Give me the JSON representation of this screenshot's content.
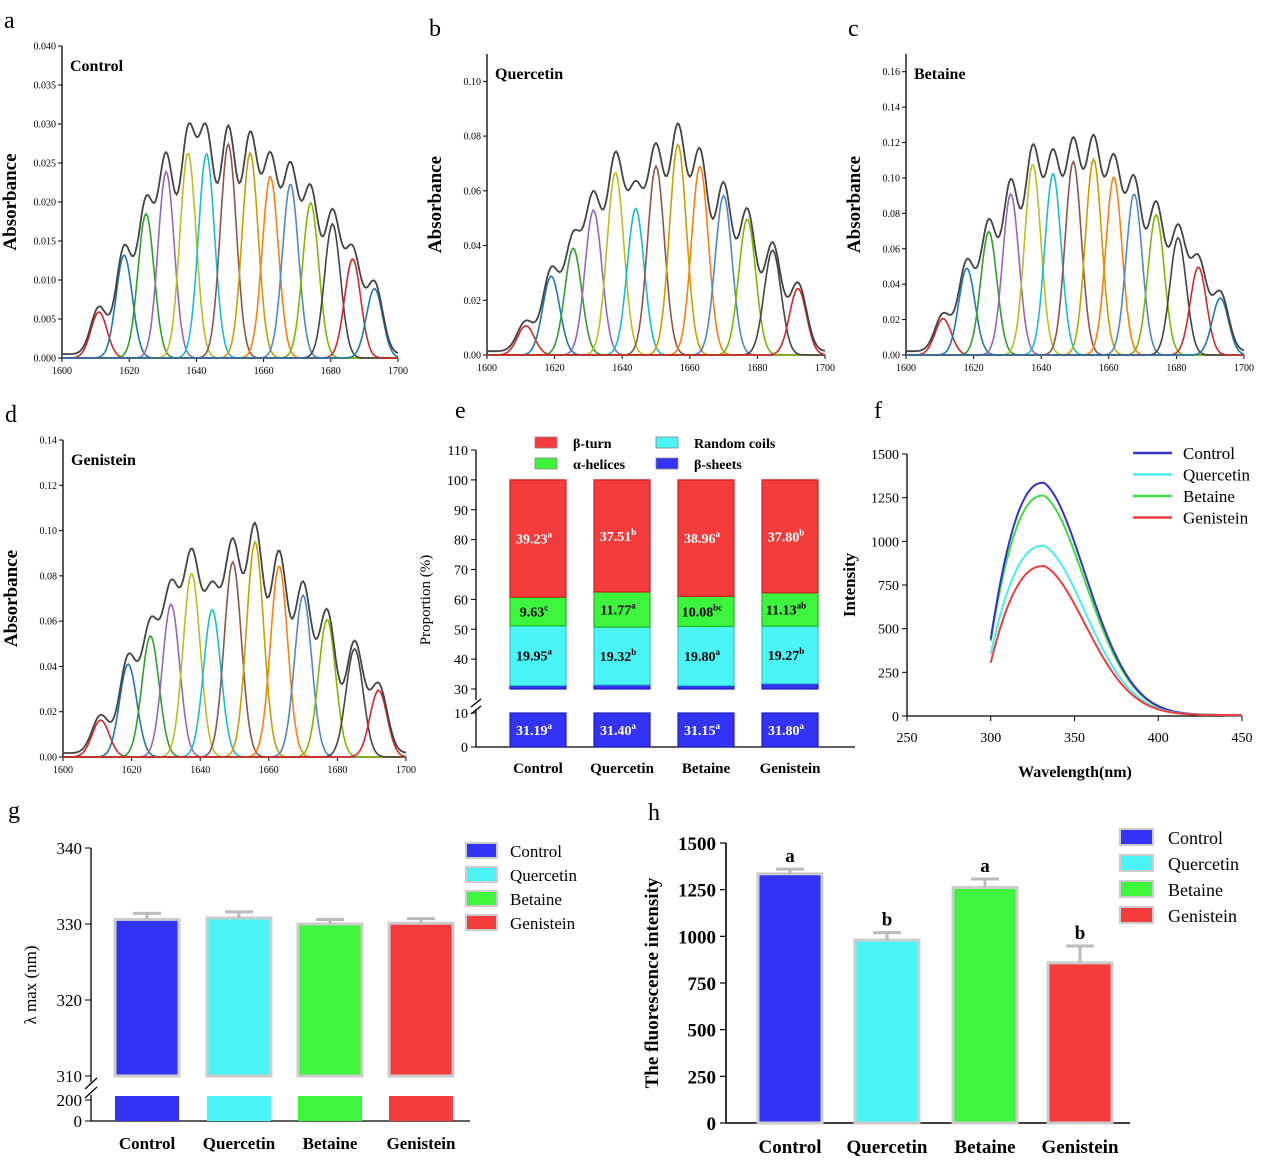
{
  "figure": {
    "panels": [
      {
        "letter": "a",
        "label": "Control"
      },
      {
        "letter": "b",
        "label": "Quercetin"
      },
      {
        "letter": "c",
        "label": "Betaine"
      },
      {
        "letter": "d",
        "label": "Genistein"
      },
      {
        "letter": "e"
      },
      {
        "letter": "f"
      },
      {
        "letter": "g"
      },
      {
        "letter": "h"
      }
    ]
  },
  "chart_data": [
    {
      "id": "a",
      "type": "line",
      "title": "Control",
      "xlabel": "",
      "ylabel": "Absorbance",
      "xlim": [
        1600,
        1700
      ],
      "ylim": [
        0,
        0.04
      ],
      "x_ticks": [
        1600,
        1620,
        1640,
        1660,
        1680,
        1700
      ],
      "y_ticks": [
        "0.000",
        "0.005",
        "0.010",
        "0.015",
        "0.020",
        "0.025",
        "0.030",
        "0.035",
        "0.040"
      ],
      "peak_centers": [
        1611,
        1618.5,
        1625,
        1631,
        1637.5,
        1643,
        1649.5,
        1656,
        1662,
        1668,
        1674,
        1680.5,
        1686.5,
        1693
      ],
      "peak_heights": [
        0.0059,
        0.0132,
        0.0185,
        0.0239,
        0.0263,
        0.0262,
        0.0274,
        0.0263,
        0.0233,
        0.0223,
        0.0199,
        0.0172,
        0.0127,
        0.0089
      ],
      "peak_sigma": 2.4
    },
    {
      "id": "b",
      "type": "line",
      "title": "Quercetin",
      "xlabel": "",
      "ylabel": "Absorbance",
      "xlim": [
        1600,
        1700
      ],
      "ylim": [
        0,
        0.11
      ],
      "x_ticks": [
        1600,
        1620,
        1640,
        1660,
        1680,
        1700
      ],
      "y_ticks": [
        "0.00",
        "0.02",
        "0.04",
        "0.06",
        "0.08",
        "0.10"
      ],
      "peak_centers": [
        1611.5,
        1619,
        1625.5,
        1631.5,
        1638,
        1644,
        1650,
        1656.5,
        1663,
        1670,
        1677,
        1684.5,
        1692
      ],
      "peak_heights": [
        0.0107,
        0.0288,
        0.039,
        0.053,
        0.0667,
        0.0535,
        0.069,
        0.077,
        0.069,
        0.0583,
        0.0497,
        0.0383,
        0.0243
      ],
      "peak_sigma": 2.5
    },
    {
      "id": "c",
      "type": "line",
      "title": "Betaine",
      "xlabel": "",
      "ylabel": "Absorbance",
      "xlim": [
        1600,
        1700
      ],
      "ylim": [
        0,
        0.17
      ],
      "x_ticks": [
        1600,
        1620,
        1640,
        1660,
        1680,
        1700
      ],
      "y_ticks": [
        "0.00",
        "0.02",
        "0.04",
        "0.06",
        "0.08",
        "0.10",
        "0.12",
        "0.14",
        "0.16"
      ],
      "peak_centers": [
        1611,
        1618,
        1624.5,
        1631,
        1637.5,
        1643.5,
        1649.5,
        1655.5,
        1661.5,
        1667.5,
        1674,
        1680.5,
        1686.5,
        1693
      ],
      "peak_heights": [
        0.0205,
        0.049,
        0.0697,
        0.091,
        0.1077,
        0.1025,
        0.1092,
        0.1107,
        0.1005,
        0.091,
        0.0792,
        0.0662,
        0.0497,
        0.0322
      ],
      "peak_sigma": 2.4
    },
    {
      "id": "d",
      "type": "line",
      "title": "Genistein",
      "xlabel": "",
      "ylabel": "Absorbance",
      "xlim": [
        1600,
        1700
      ],
      "ylim": [
        0,
        0.14
      ],
      "x_ticks": [
        1600,
        1620,
        1640,
        1660,
        1680,
        1700
      ],
      "y_ticks": [
        "0.00",
        "0.02",
        "0.04",
        "0.06",
        "0.08",
        "0.10",
        "0.12",
        "0.14"
      ],
      "peak_centers": [
        1611,
        1619,
        1625.5,
        1631.5,
        1637.5,
        1643.5,
        1649.5,
        1656,
        1663,
        1670,
        1677,
        1685,
        1692
      ],
      "peak_heights": [
        0.0163,
        0.041,
        0.0535,
        0.0675,
        0.0812,
        0.065,
        0.0862,
        0.095,
        0.0845,
        0.0715,
        0.0607,
        0.0478,
        0.0295
      ],
      "peak_sigma": 2.5
    },
    {
      "id": "e",
      "type": "bar",
      "stacked": true,
      "categories": [
        "Control",
        "Quercetin",
        "Betaine",
        "Genistein"
      ],
      "xlabel": "",
      "ylabel": "Proportion (%)",
      "ylim": [
        0,
        110
      ],
      "axis_break": [
        10,
        30
      ],
      "y_ticks": [
        "0",
        "10",
        "30",
        "40",
        "50",
        "60",
        "70",
        "80",
        "90",
        "100",
        "110"
      ],
      "series": [
        {
          "name": "β-sheets",
          "color": "#3333f5",
          "values": [
            31.19,
            31.4,
            31.15,
            31.8
          ],
          "labels": [
            "31.19",
            "31.40",
            "31.15",
            "31.80"
          ],
          "sup": [
            "a",
            "a",
            "a",
            "a"
          ]
        },
        {
          "name": "Random coils",
          "color": "#49f5f5",
          "values": [
            19.95,
            19.32,
            19.8,
            19.27
          ],
          "labels": [
            "19.95",
            "19.32",
            "19.80",
            "19.27"
          ],
          "sup": [
            "a",
            "b",
            "a",
            "b"
          ]
        },
        {
          "name": "α-helices",
          "color": "#3df53d",
          "values": [
            9.63,
            11.77,
            10.08,
            11.13
          ],
          "labels": [
            "9.63",
            "11.77",
            "10.08",
            "11.13"
          ],
          "sup": [
            "c",
            "a",
            "bc",
            "ab"
          ]
        },
        {
          "name": "β-turn",
          "color": "#f53c3c",
          "values": [
            39.23,
            37.51,
            38.96,
            37.8
          ],
          "labels": [
            "39.23",
            "37.51",
            "38.96",
            "37.80"
          ],
          "sup": [
            "a",
            "b",
            "a",
            "b"
          ]
        }
      ]
    },
    {
      "id": "f",
      "type": "line",
      "xlabel": "Wavelength(nm)",
      "ylabel": "Intensity",
      "xlim": [
        250,
        450
      ],
      "ylim": [
        0,
        1500
      ],
      "x_ticks": [
        "250",
        "300",
        "350",
        "400",
        "450"
      ],
      "y_ticks": [
        "0",
        "250",
        "500",
        "750",
        "1000",
        "1250",
        "1500"
      ],
      "series": [
        {
          "name": "Control",
          "color": "#3333cc",
          "x0": 300,
          "peak_x": 331,
          "peak_y": 1335,
          "start_y": 440
        },
        {
          "name": "Quercetin",
          "color": "#49eeee",
          "x0": 300,
          "peak_x": 331,
          "peak_y": 975,
          "start_y": 355
        },
        {
          "name": "Betaine",
          "color": "#3dde3d",
          "x0": 300,
          "peak_x": 331,
          "peak_y": 1262,
          "start_y": 430
        },
        {
          "name": "Genistein",
          "color": "#ee3c3c",
          "x0": 300,
          "peak_x": 331,
          "peak_y": 858,
          "start_y": 305
        }
      ]
    },
    {
      "id": "g",
      "type": "bar",
      "categories": [
        "Control",
        "Quercetin",
        "Betaine",
        "Genistein"
      ],
      "xlabel": "",
      "ylabel": "λ max (nm)",
      "ylim": [
        0,
        340
      ],
      "axis_break": [
        200,
        310
      ],
      "y_ticks": [
        "0",
        "200",
        "310",
        "320",
        "330",
        "340"
      ],
      "series": [
        {
          "name": "λ max",
          "values": [
            330.6,
            330.8,
            330.0,
            330.1
          ],
          "errors": [
            0.8,
            0.8,
            0.6,
            0.6
          ],
          "colors": [
            "#3333f5",
            "#49f5f5",
            "#3df53d",
            "#f53c3c"
          ]
        }
      ]
    },
    {
      "id": "h",
      "type": "bar",
      "categories": [
        "Control",
        "Quercetin",
        "Betaine",
        "Genistein"
      ],
      "xlabel": "",
      "ylabel": "The fluorescence intensity",
      "ylim": [
        0,
        1500
      ],
      "y_ticks": [
        "0",
        "250",
        "500",
        "750",
        "1000",
        "1250",
        "1500"
      ],
      "series": [
        {
          "name": "Fluorescence intensity",
          "values": [
            1335,
            980,
            1262,
            858
          ],
          "errors": [
            25,
            40,
            45,
            90
          ],
          "letters": [
            "a",
            "b",
            "a",
            "b"
          ],
          "colors": [
            "#3333f5",
            "#49f5f5",
            "#3df53d",
            "#f53c3c"
          ]
        }
      ]
    }
  ]
}
